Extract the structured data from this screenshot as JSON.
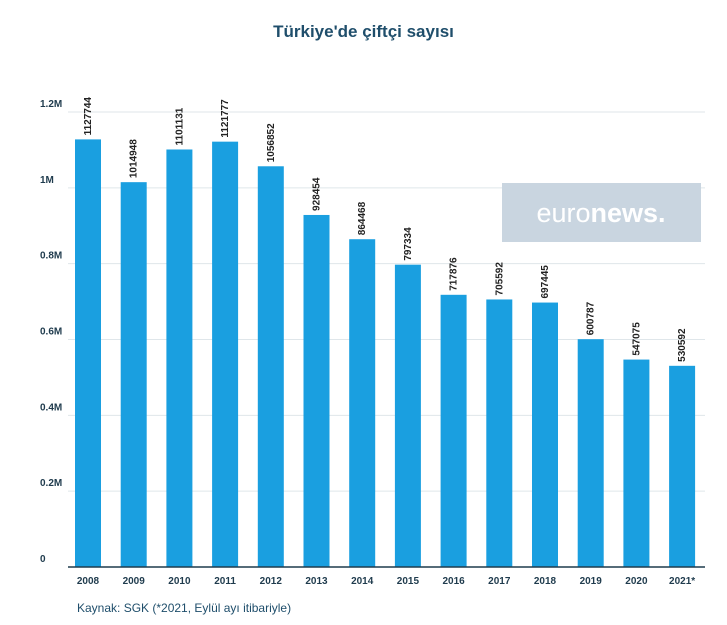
{
  "chart_data": {
    "type": "bar",
    "title": "Türkiye'de çiftçi sayısı",
    "categories": [
      "2008",
      "2009",
      "2010",
      "2011",
      "2012",
      "2013",
      "2014",
      "2015",
      "2016",
      "2017",
      "2018",
      "2019",
      "2020",
      "2021*"
    ],
    "values": [
      1127744,
      1014948,
      1101131,
      1121777,
      1056852,
      928454,
      864468,
      797334,
      717876,
      705592,
      697445,
      600787,
      547075,
      530592
    ],
    "data_labels": [
      "1127744",
      "1014948",
      "1101131",
      "1121777",
      "1056852",
      "928454",
      "864468",
      "797334",
      "717876",
      "705592",
      "697445",
      "600787",
      "547075",
      "530592"
    ],
    "yticks": [
      0,
      200000,
      400000,
      600000,
      800000,
      1000000,
      1200000
    ],
    "ytick_labels": [
      "0",
      "0.2M",
      "0.4M",
      "0.6M",
      "0.8M",
      "1M",
      "1.2M"
    ],
    "ylim": [
      0,
      1200000
    ],
    "xlabel": "",
    "ylabel": "",
    "grid": true,
    "bar_color": "#1a9fe0"
  },
  "watermark": {
    "part1": "euro",
    "part2": "news."
  },
  "source": "Kaynak: SGK (*2021, Eylül ayı itibariyle)"
}
